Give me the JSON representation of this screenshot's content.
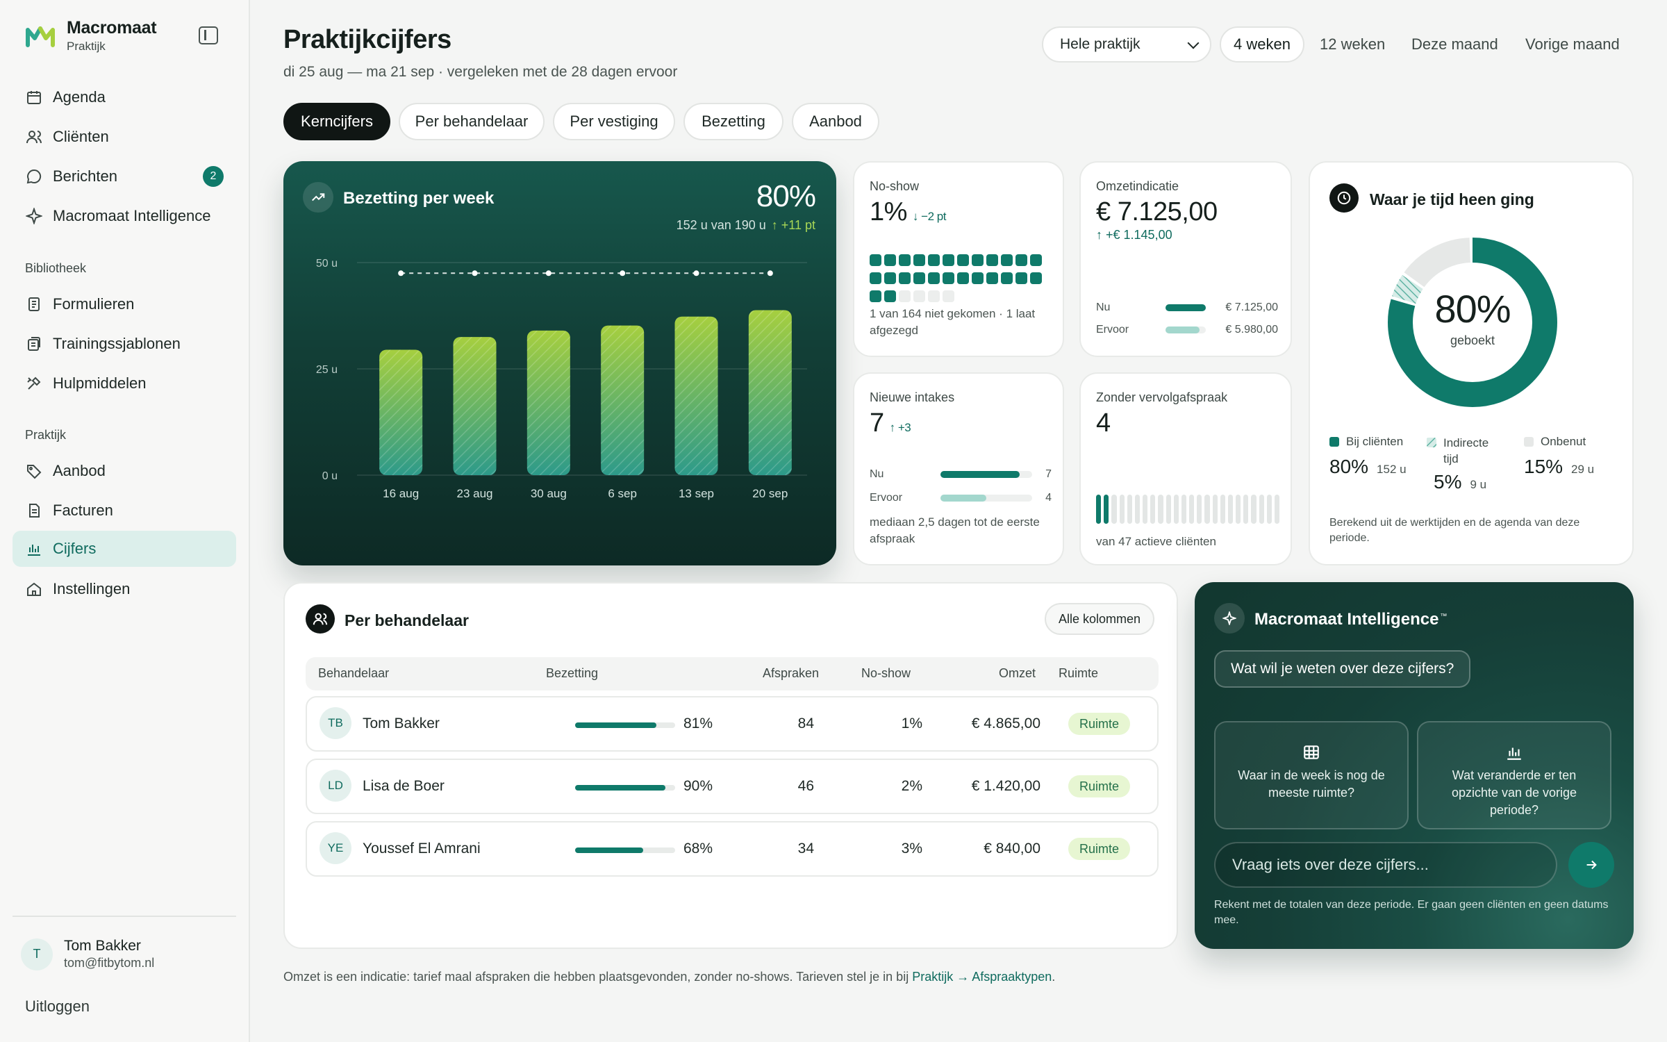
{
  "brand": {
    "name": "Macromaat",
    "sub": "Praktijk"
  },
  "nav": {
    "agenda": "Agenda",
    "clienten": "Cliënten",
    "berichten": "Berichten",
    "berichten_badge": "2",
    "intelligence": "Macromaat Intelligence",
    "section_bibliotheek": "Bibliotheek",
    "formulieren": "Formulieren",
    "trainingssjablonen": "Trainingssjablonen",
    "hulpmiddelen": "Hulpmiddelen",
    "section_praktijk": "Praktijk",
    "aanbod": "Aanbod",
    "facturen": "Facturen",
    "cijfers": "Cijfers",
    "instellingen": "Instellingen"
  },
  "user": {
    "initial": "T",
    "name": "Tom Bakker",
    "email": "tom@fitbytom.nl",
    "logout": "Uitloggen"
  },
  "header": {
    "title": "Praktijkcijfers",
    "subtitle": "di 25 aug — ma 21 sep · vergeleken met de 28 dagen ervoor",
    "scope_select": "Hele praktijk",
    "ranges": [
      "4 weken",
      "12 weken",
      "Deze maand",
      "Vorige maand"
    ],
    "active_range": "4 weken"
  },
  "tabs": [
    "Kerncijfers",
    "Per behandelaar",
    "Per vestiging",
    "Bezetting",
    "Aanbod"
  ],
  "active_tab": "Kerncijfers",
  "hero": {
    "title": "Bezetting per week",
    "pct": "80%",
    "sub": "152 u van 190 u",
    "delta": "↑ +11 pt"
  },
  "chart_data": {
    "type": "bar",
    "title": "Bezetting per week",
    "categories": [
      "16 aug",
      "23 aug",
      "30 aug",
      "6 sep",
      "13 sep",
      "20 sep"
    ],
    "values": [
      29.5,
      32.5,
      34,
      35.2,
      37.3,
      38.8
    ],
    "target_line": [
      47.5,
      47.5,
      47.5,
      47.5,
      47.5,
      47.5
    ],
    "y_ticks": [
      "0 u",
      "25 u",
      "50 u"
    ],
    "ylim": [
      0,
      50
    ],
    "grid": true,
    "colors": {
      "bar_top": "#a6cf3f",
      "bar_bottom": "#2d9a8a"
    }
  },
  "noshow": {
    "label": "No-show",
    "value": "1%",
    "delta": "↓ −2 pt",
    "note": "1 van 164 niet gekomen · 1 laat afgezegd",
    "filled": 26,
    "total": 30
  },
  "omzet": {
    "label": "Omzetindicatie",
    "value": "€ 7.125,00",
    "delta": "↑ +€ 1.145,00",
    "now_label": "Nu",
    "now_value": "€ 7.125,00",
    "prev_label": "Ervoor",
    "prev_value": "€ 5.980,00",
    "now_ratio": 1.0,
    "prev_ratio": 0.84
  },
  "tijd": {
    "title": "Waar je tijd heen ging",
    "center_pct": "80%",
    "center_label": "geboekt",
    "legend": [
      {
        "name": "Bij cliënten",
        "pct": "80%",
        "hours": "152 u",
        "share": 0.8,
        "color": "#0f7a6a"
      },
      {
        "name": "Indirecte tijd",
        "pct": "5%",
        "hours": "9 u",
        "share": 0.05,
        "color": "#7fc4b7"
      },
      {
        "name": "Onbenut",
        "pct": "15%",
        "hours": "29 u",
        "share": 0.15,
        "color": "#e6e8e7"
      }
    ],
    "note": "Berekend uit de werktijden en de agenda van deze periode."
  },
  "intakes": {
    "label": "Nieuwe intakes",
    "value": "7",
    "delta": "↑ +3",
    "now_label": "Nu",
    "now_value": "7",
    "prev_label": "Ervoor",
    "prev_value": "4",
    "now_ratio": 0.86,
    "prev_ratio": 0.5,
    "note": "mediaan 2,5 dagen tot de eerste afspraak"
  },
  "vervolg": {
    "label": "Zonder vervolgafspraak",
    "value": "4",
    "note": "van 47 actieve cliënten",
    "highlighted": 2,
    "total": 24
  },
  "behandelaar": {
    "title": "Per behandelaar",
    "all_columns": "Alle kolommen",
    "columns": [
      "Behandelaar",
      "Bezetting",
      "Afspraken",
      "No-show",
      "Omzet",
      "Ruimte"
    ],
    "rows": [
      {
        "initials": "TB",
        "name": "Tom Bakker",
        "bezetting": "81%",
        "fill": 0.81,
        "afspraken": "84",
        "noshow": "1%",
        "omzet": "€ 4.865,00",
        "ruimte": "Ruimte"
      },
      {
        "initials": "LD",
        "name": "Lisa de Boer",
        "bezetting": "90%",
        "fill": 0.9,
        "afspraken": "46",
        "noshow": "2%",
        "omzet": "€ 1.420,00",
        "ruimte": "Ruimte"
      },
      {
        "initials": "YE",
        "name": "Youssef El Amrani",
        "bezetting": "68%",
        "fill": 0.68,
        "afspraken": "34",
        "noshow": "3%",
        "omzet": "€ 840,00",
        "ruimte": "Ruimte"
      }
    ]
  },
  "ai": {
    "title": "Macromaat Intelligence",
    "tm": "™",
    "question": "Wat wil je weten over deze cijfers?",
    "suggestion_1": "Waar in de week is nog de meeste ruimte?",
    "suggestion_2": "Wat veranderde er ten opzichte van de vorige periode?",
    "input_placeholder": "Vraag iets over deze cijfers...",
    "note": "Rekent met de totalen van deze periode. Er gaan geen cliënten en geen datums mee."
  },
  "footer": {
    "text": "Omzet is een indicatie: tarief maal afspraken die hebben plaatsgevonden, zonder no-shows. Tarieven stel je in bij ",
    "link": "Praktijk → Afspraaktypen",
    "end": "."
  }
}
